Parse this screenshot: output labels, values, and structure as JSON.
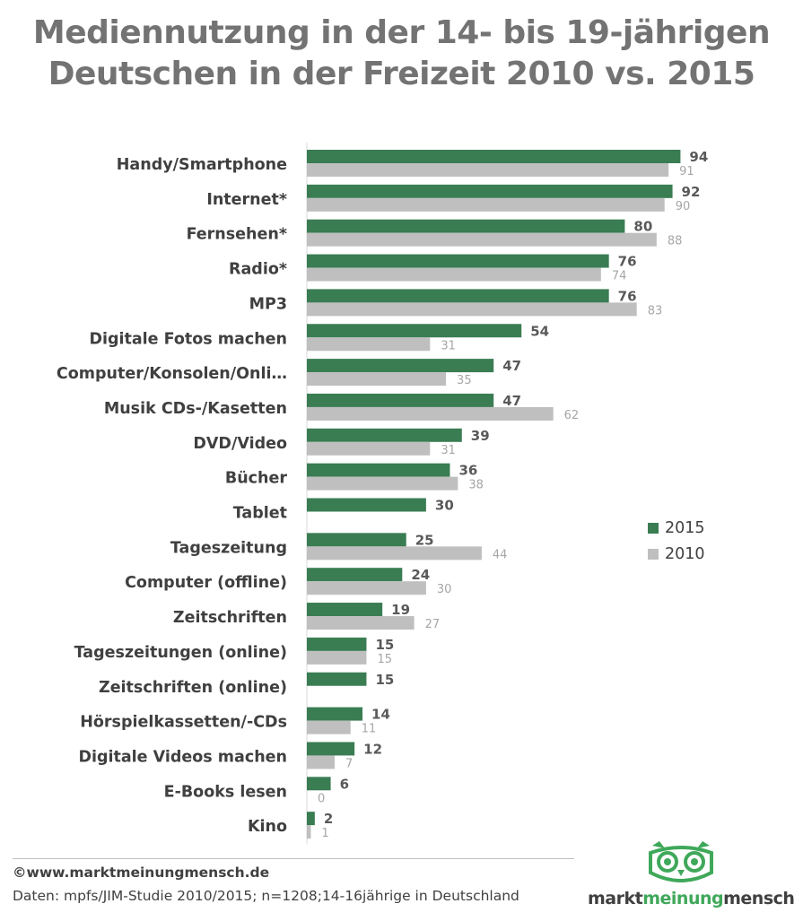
{
  "title_line1": "Mediennutzung in der 14- bis 19-jährigen",
  "title_line2": "Deutschen in der Freizeit 2010 vs. 2015",
  "footer": {
    "copyright": "©www.marktmeinungmensch.de",
    "source": "Daten: mpfs/JIM-Studie 2010/2015; n=1208;14-16jährige in Deutschland"
  },
  "logo": {
    "part1": "markt",
    "part2": "meinung",
    "part3": "mensch",
    "icon": "owl-logo-icon"
  },
  "colors": {
    "series2015": "#3a7d53",
    "series2010": "#bfbfbf",
    "title": "#737373"
  },
  "chart_data": {
    "type": "bar",
    "orientation": "horizontal",
    "title": "Mediennutzung in der 14- bis 19-jährigen Deutschen in der Freizeit 2010 vs. 2015",
    "categories": [
      "Handy/Smartphone",
      "Internet*",
      "Fernsehen*",
      "Radio*",
      "MP3",
      "Digitale Fotos machen",
      "Computer/Konsolen/Onli…",
      "Musik CDs-/Kasetten",
      "DVD/Video",
      "Bücher",
      "Tablet",
      "Tageszeitung",
      "Computer (offline)",
      "Zeitschriften",
      "Tageszeitungen (online)",
      "Zeitschriften (online)",
      "Hörspielkassetten/-CDs",
      "Digitale Videos machen",
      "E-Books lesen",
      "Kino"
    ],
    "series": [
      {
        "name": "2015",
        "values": [
          94,
          92,
          80,
          76,
          76,
          54,
          47,
          47,
          39,
          36,
          30,
          25,
          24,
          19,
          15,
          15,
          14,
          12,
          6,
          2
        ]
      },
      {
        "name": "2010",
        "values": [
          91,
          90,
          88,
          74,
          83,
          31,
          35,
          62,
          31,
          38,
          null,
          44,
          30,
          27,
          15,
          null,
          11,
          7,
          0,
          1
        ]
      }
    ],
    "xlim": [
      0,
      100
    ],
    "grid": false,
    "legend": "right"
  }
}
